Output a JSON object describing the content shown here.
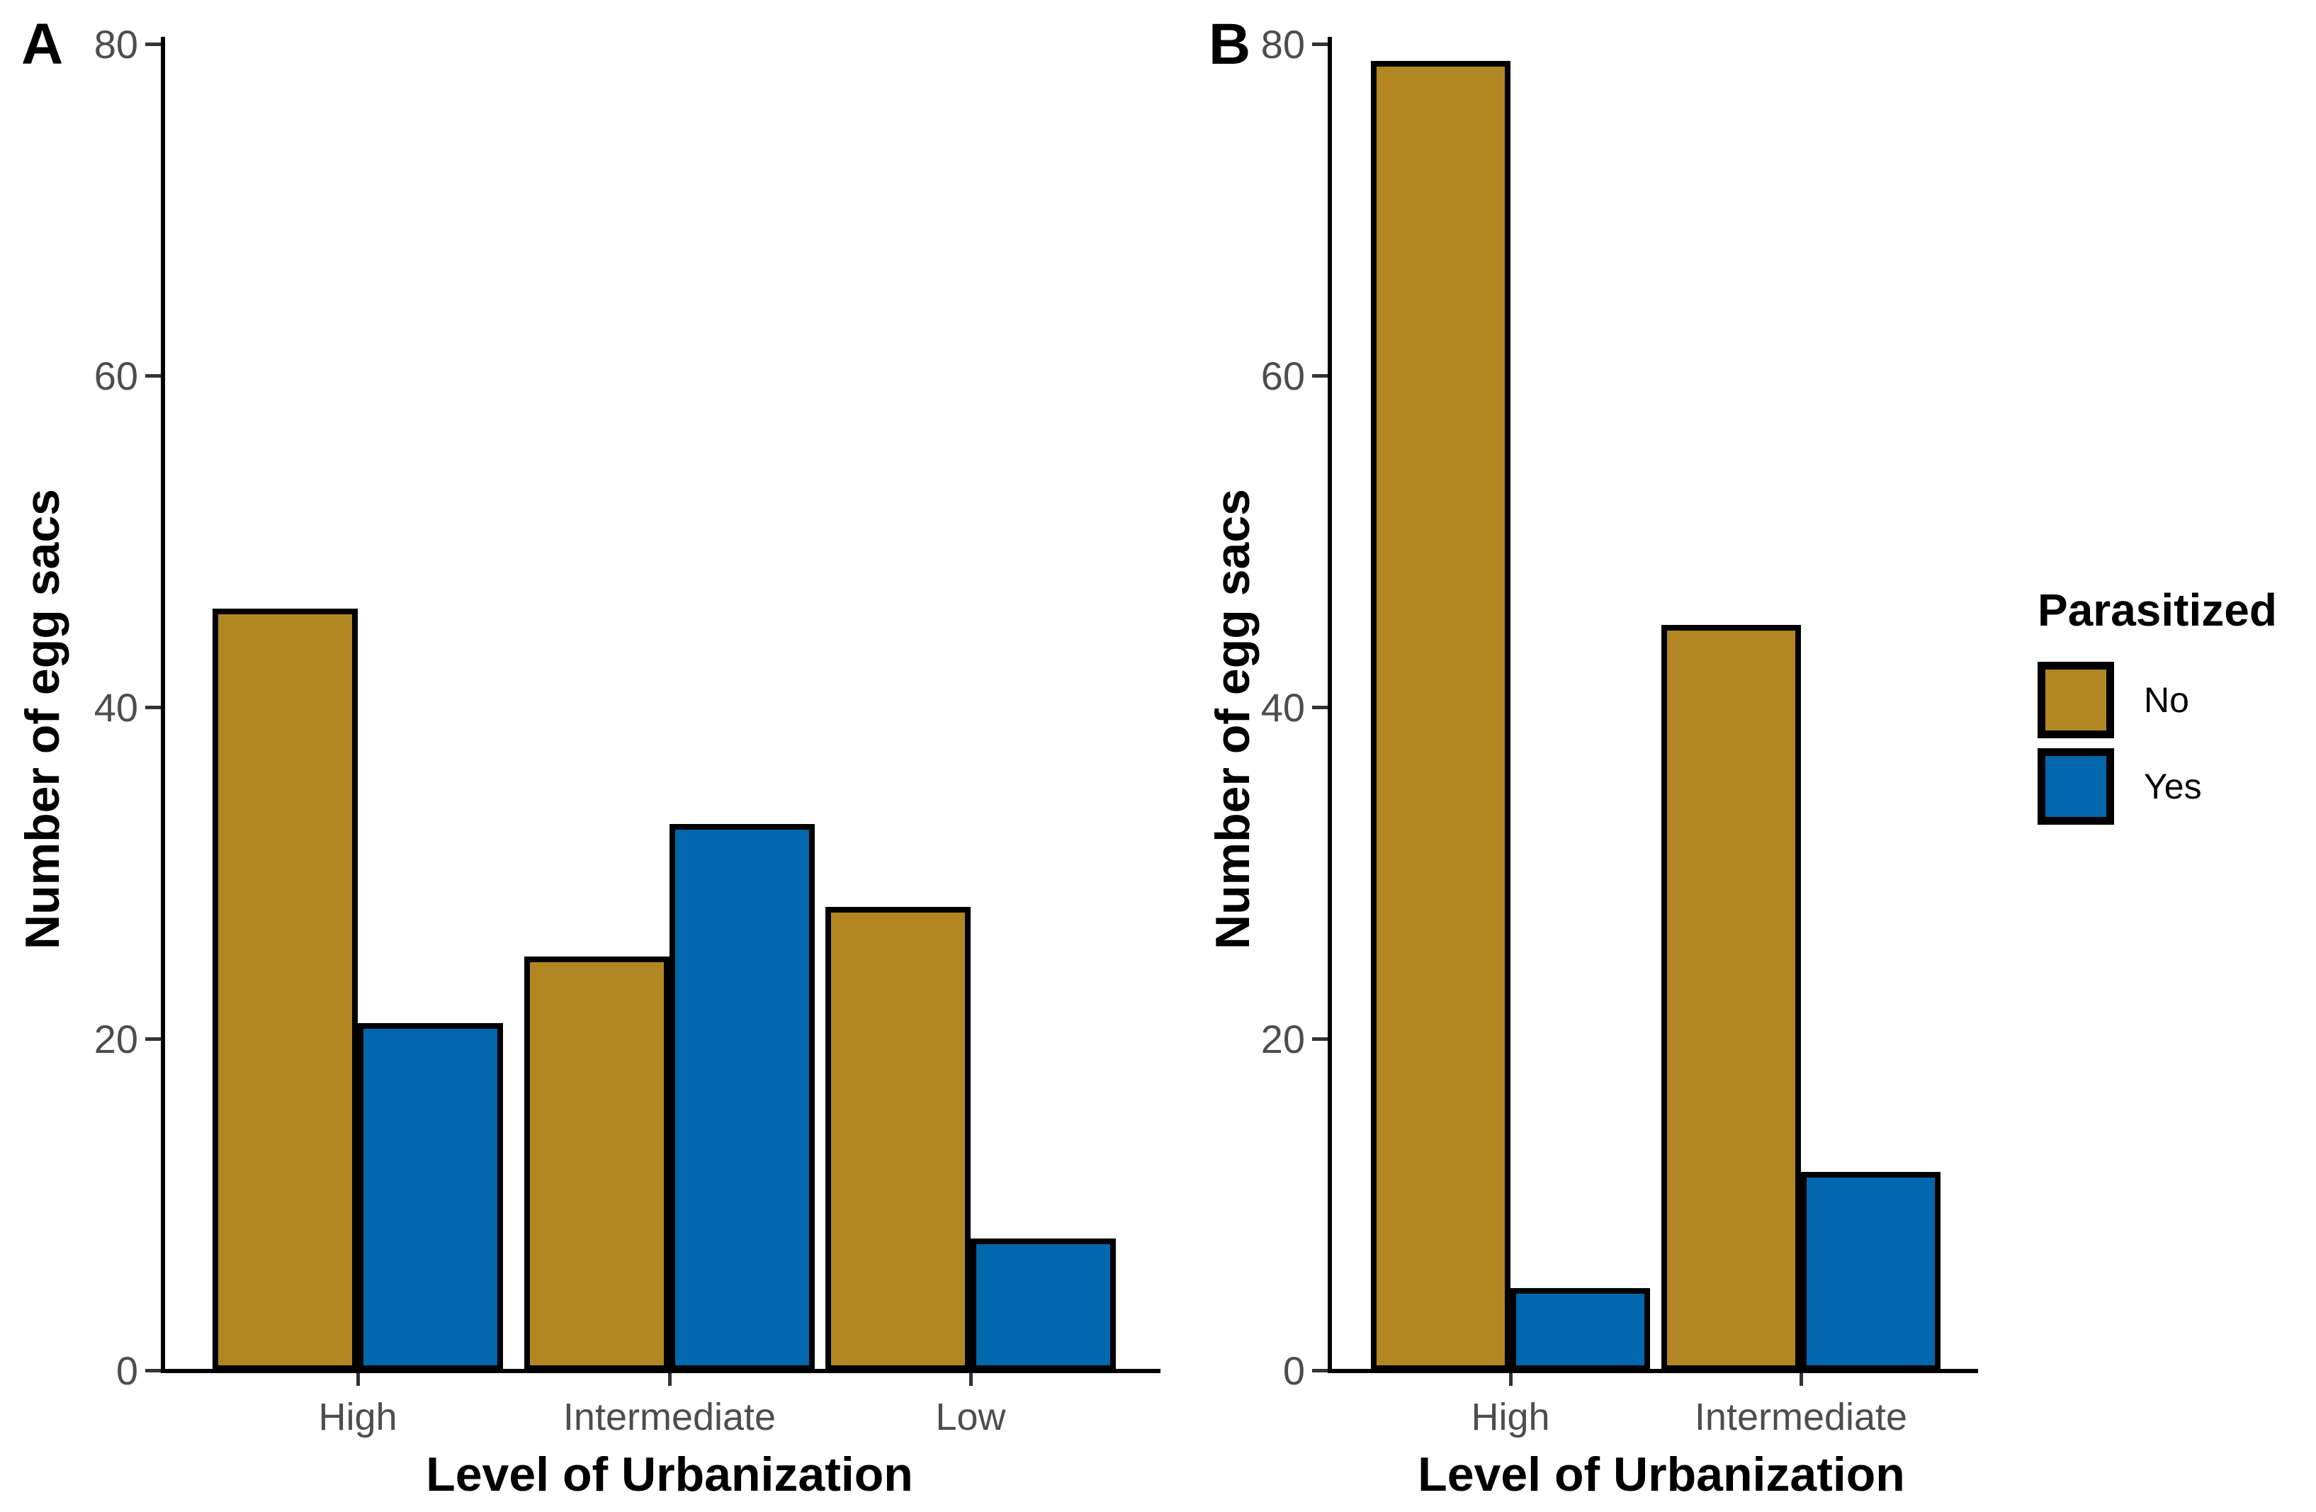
{
  "chart_data": [
    {
      "type": "bar",
      "panel_label": "A",
      "xlabel": "Level of Urbanization",
      "ylabel": "Number of egg sacs",
      "categories": [
        "High",
        "Intermediate",
        "Low"
      ],
      "series": [
        {
          "name": "No",
          "values": [
            46,
            25,
            28
          ]
        },
        {
          "name": "Yes",
          "values": [
            21,
            33,
            8
          ]
        }
      ],
      "ylim": [
        0,
        80
      ],
      "yticks": [
        "0",
        "20",
        "40",
        "60",
        "80"
      ],
      "grid": false,
      "legend_position": "shared-right"
    },
    {
      "type": "bar",
      "panel_label": "B",
      "xlabel": "Level of Urbanization",
      "ylabel": "Number of egg sacs",
      "categories": [
        "High",
        "Intermediate"
      ],
      "series": [
        {
          "name": "No",
          "values": [
            79,
            45
          ]
        },
        {
          "name": "Yes",
          "values": [
            5,
            12
          ]
        }
      ],
      "ylim": [
        0,
        80
      ],
      "yticks": [
        "0",
        "20",
        "40",
        "60",
        "80"
      ],
      "grid": false,
      "legend_position": "shared-right"
    }
  ],
  "legend": {
    "title": "Parasitized",
    "entries": [
      {
        "label": "No",
        "color": "#B28723"
      },
      {
        "label": "Yes",
        "color": "#0367AD"
      }
    ]
  },
  "colors": {
    "bar_no": "#B28723",
    "bar_yes": "#0367AD",
    "bar_outline": "#000000",
    "axis_line": "#000000",
    "tick_text": "#4D4D4D",
    "title_text": "#000000",
    "background": "#FFFFFF"
  }
}
